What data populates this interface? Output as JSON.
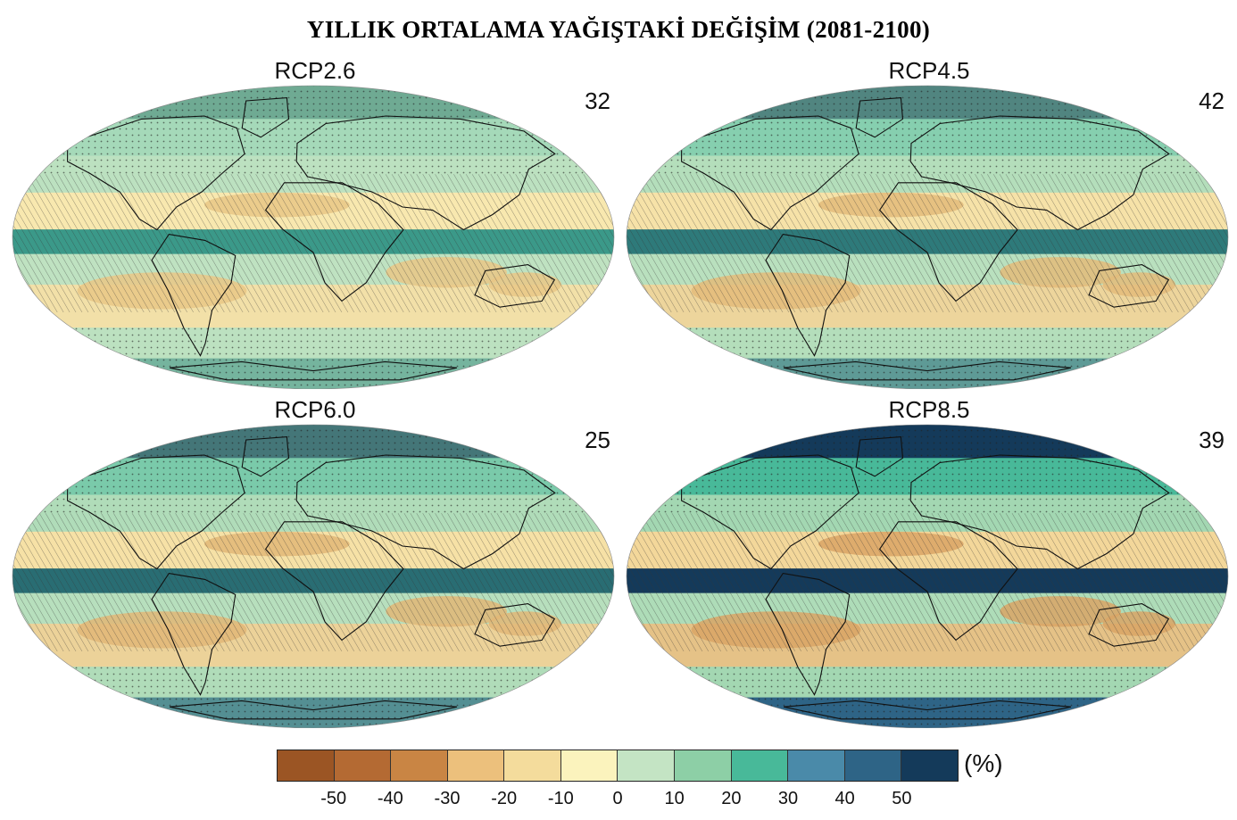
{
  "title": "YILLIK ORTALAMA YAĞIŞTAKİ DEĞİŞİM (2081-2100)",
  "panels": [
    {
      "label": "RCP2.6",
      "count": "32",
      "wet_intensity": 0.25,
      "dry_intensity": 0.35
    },
    {
      "label": "RCP4.5",
      "count": "42",
      "wet_intensity": 0.5,
      "dry_intensity": 0.55
    },
    {
      "label": "RCP6.0",
      "count": "25",
      "wet_intensity": 0.6,
      "dry_intensity": 0.6
    },
    {
      "label": "RCP8.5",
      "count": "39",
      "wet_intensity": 1.0,
      "dry_intensity": 0.9
    }
  ],
  "legend": {
    "unit": "(%)",
    "colors": [
      "#9b5524",
      "#b46a33",
      "#c98544",
      "#ecc07c",
      "#f4dc9c",
      "#fbf3bd",
      "#c4e4c4",
      "#8dcfa6",
      "#48b999",
      "#4a8aa9",
      "#2e6486",
      "#143a5a"
    ],
    "ticks": [
      "-50",
      "-40",
      "-30",
      "-20",
      "-10",
      "0",
      "10",
      "20",
      "30",
      "40",
      "50"
    ]
  }
}
